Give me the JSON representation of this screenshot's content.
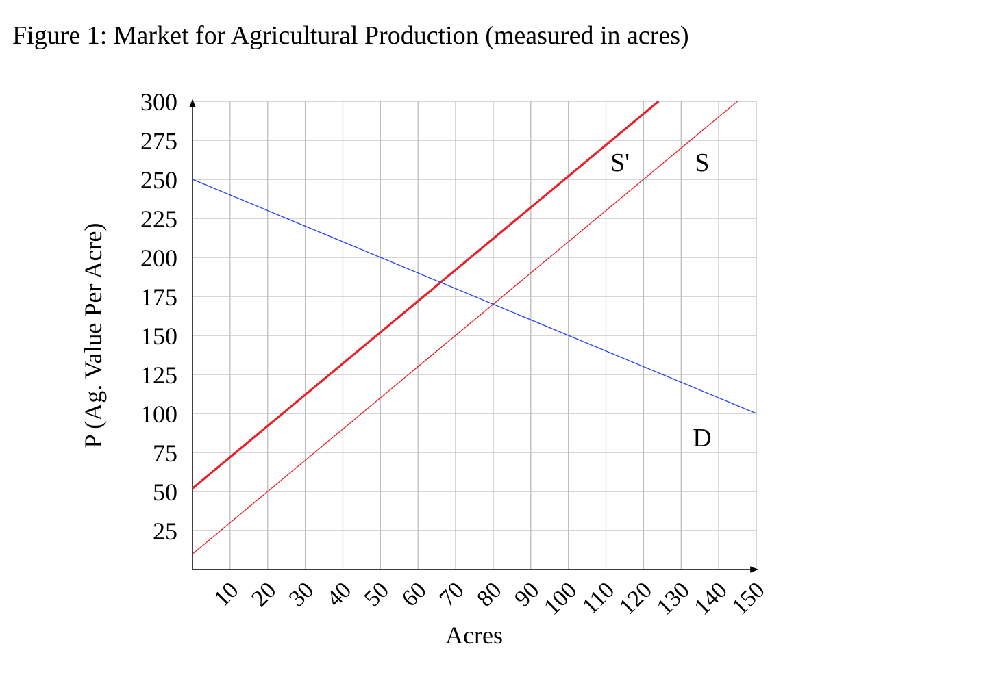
{
  "chart_data": {
    "type": "line",
    "title": "Figure 1: Market for Agricultural Production (measured in acres)",
    "x_label": "Acres",
    "y_label": "P (Ag. Value Per Acre)",
    "xlim": [
      0,
      150
    ],
    "ylim": [
      0,
      300
    ],
    "xticks": [
      10,
      20,
      30,
      40,
      50,
      60,
      70,
      80,
      90,
      100,
      110,
      120,
      130,
      140,
      150
    ],
    "yticks": [
      25,
      50,
      75,
      100,
      125,
      150,
      175,
      200,
      225,
      250,
      275,
      300
    ],
    "grid": true,
    "series": [
      {
        "name": "S'",
        "color": "#e8202a",
        "x": [
          0,
          124
        ],
        "values": [
          52,
          300
        ]
      },
      {
        "name": "S",
        "color": "#e8202a",
        "x": [
          0,
          145
        ],
        "values": [
          10,
          300
        ]
      },
      {
        "name": "D",
        "color": "#1f3fff",
        "x": [
          0,
          150
        ],
        "values": [
          250,
          100
        ]
      }
    ]
  }
}
